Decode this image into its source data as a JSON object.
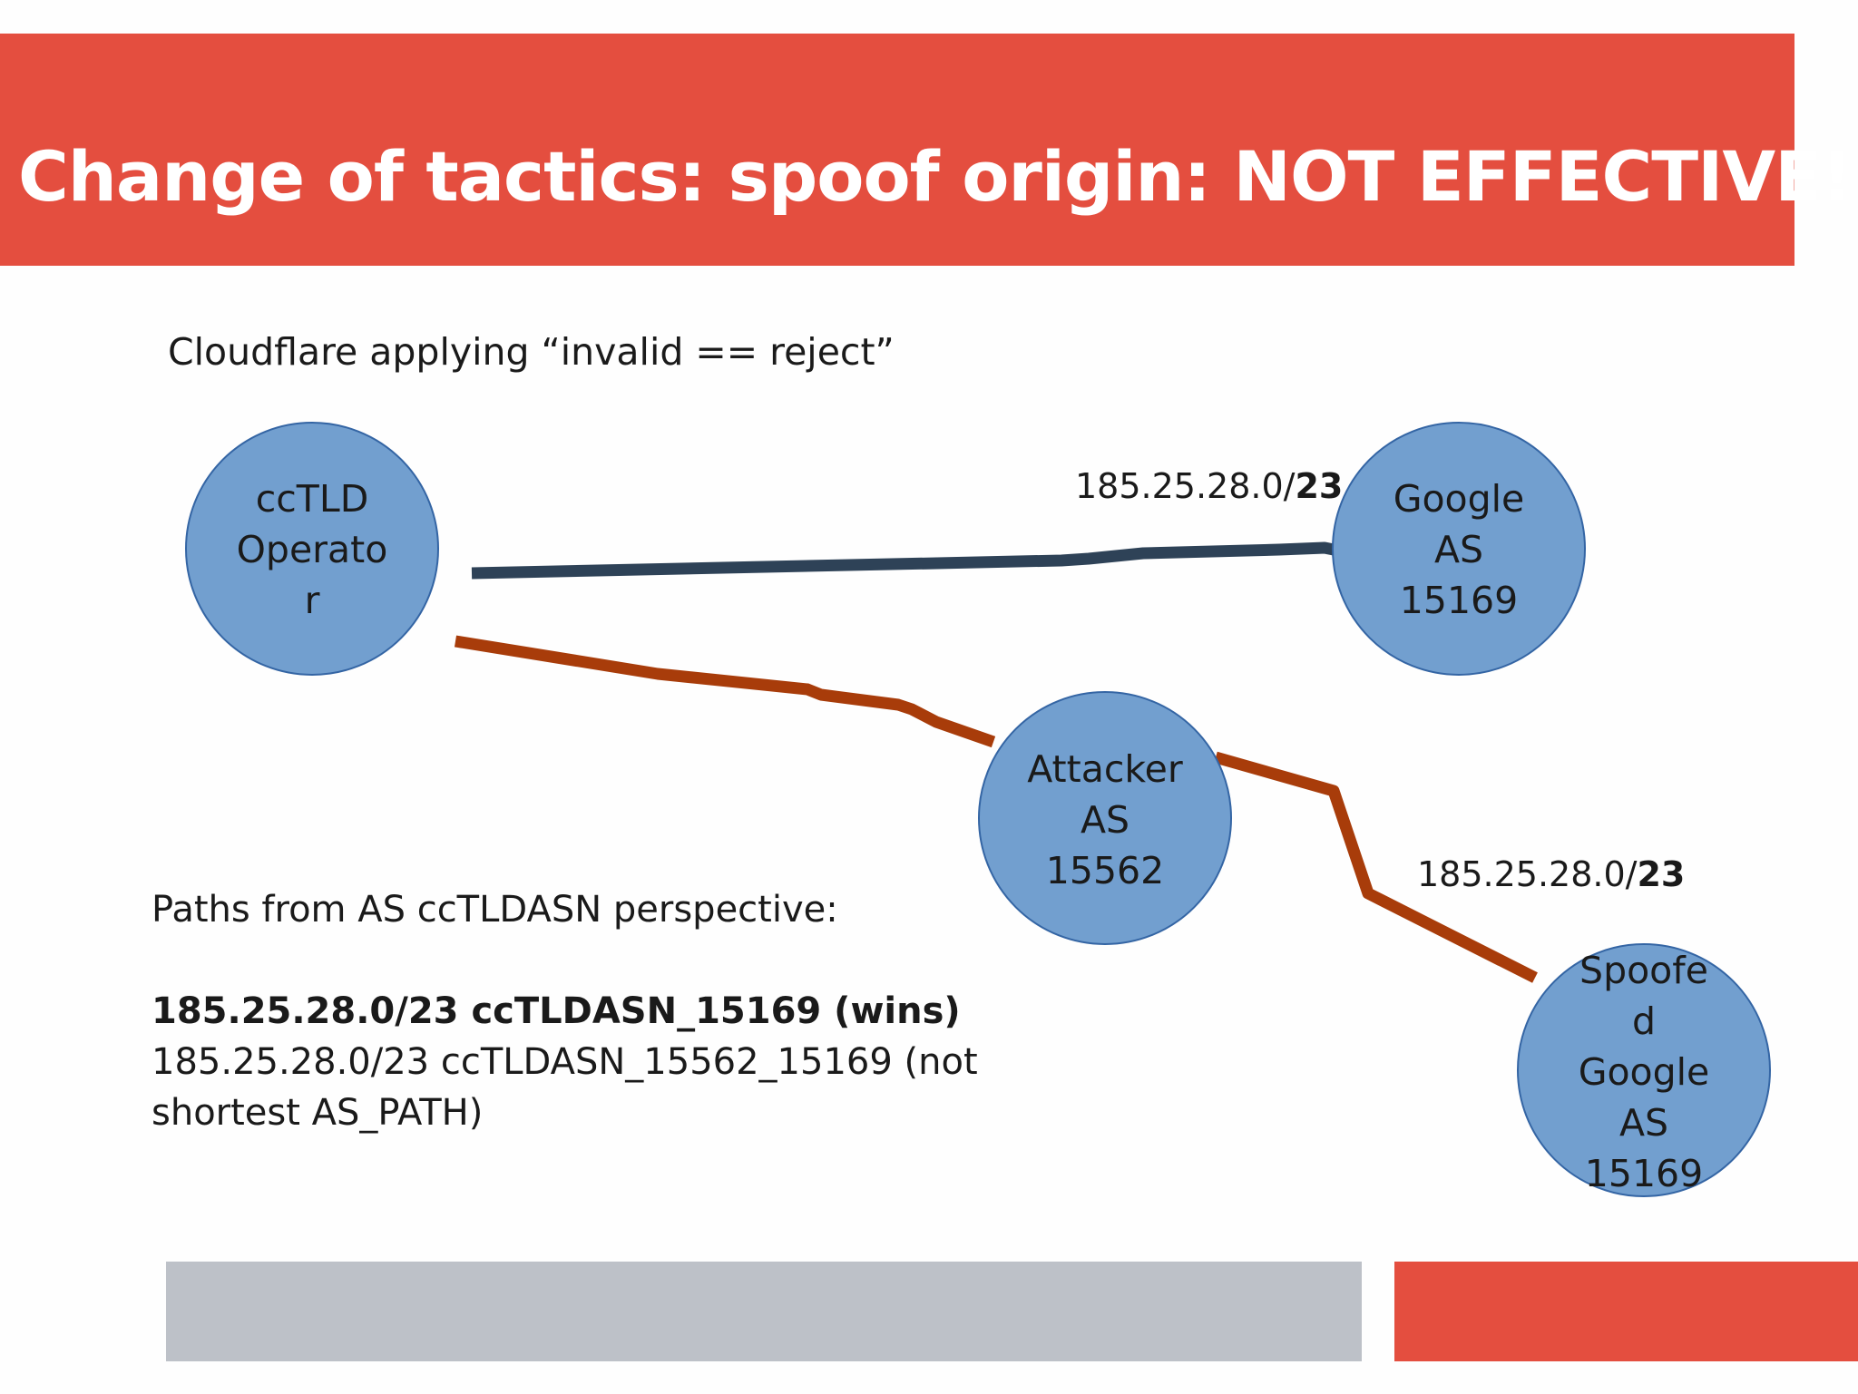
{
  "title": "Change of tactics: spoof origin: NOT EFFECTIVE!",
  "subtitle": "Cloudflare applying “invalid == reject”",
  "colors": {
    "banner": "#e44e3f",
    "node_fill": "#729fcf",
    "node_stroke": "#3465a4",
    "legit_path": "#2e4257",
    "attack_path": "#a83c0a",
    "footer_gray": "#bdc1c8"
  },
  "nodes": {
    "cctld": "ccTLD\nOperato\nr",
    "google": "Google\nAS\n15169",
    "attacker": "Attacker\nAS\n15562",
    "spoofed": "Spoofe\nd\nGoogle\nAS\n15169"
  },
  "edges": {
    "google_prefix_base": "185.25.28.0/",
    "google_prefix_len": "23",
    "spoofed_prefix_base": "185.25.28.0/",
    "spoofed_prefix_len": "23"
  },
  "paths": {
    "heading": "Paths from AS ccTLDASN perspective:",
    "winner": "185.25.28.0/23 ccTLDASN_15169 (wins)",
    "loser": "185.25.28.0/23 ccTLDASN_15562_15169 (not shortest AS_PATH)"
  }
}
